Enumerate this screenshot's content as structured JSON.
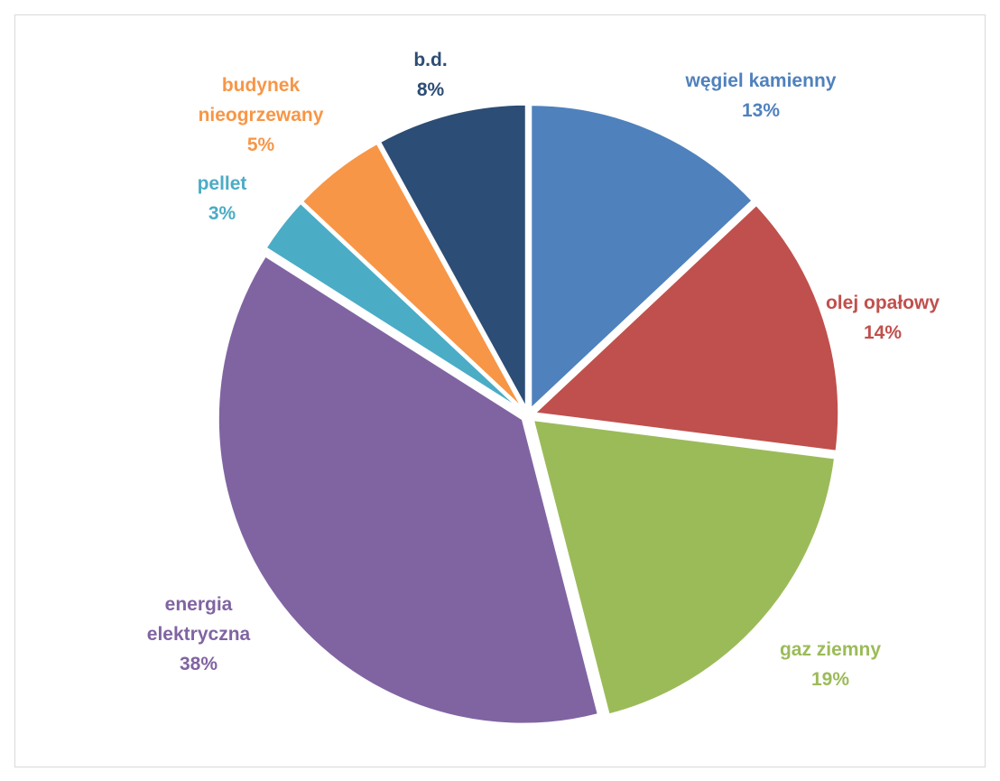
{
  "chart_data": {
    "type": "pie",
    "title": "",
    "slices": [
      {
        "name": "węgiel kamienny",
        "value": 13,
        "percent_label": "13%",
        "color": "#4f81bd",
        "label_lines": [
          "węgiel kamienny",
          "13%"
        ]
      },
      {
        "name": "olej opałowy",
        "value": 14,
        "percent_label": "14%",
        "color": "#c0504d",
        "label_lines": [
          "olej opałowy",
          "14%"
        ]
      },
      {
        "name": "gaz ziemny",
        "value": 19,
        "percent_label": "19%",
        "color": "#9bbb59",
        "label_lines": [
          "gaz ziemny",
          "19%"
        ]
      },
      {
        "name": "energia elektryczna",
        "value": 38,
        "percent_label": "38%",
        "color": "#8064a2",
        "label_lines": [
          "energia",
          "elektryczna",
          "38%"
        ]
      },
      {
        "name": "pellet",
        "value": 3,
        "percent_label": "3%",
        "color": "#4bacc6",
        "label_lines": [
          "pellet",
          "3%"
        ]
      },
      {
        "name": "budynek nieogrzewany",
        "value": 5,
        "percent_label": "5%",
        "color": "#f79646",
        "label_lines": [
          "budynek",
          "nieogrzewany",
          "5%"
        ]
      },
      {
        "name": "b.d.",
        "value": 8,
        "percent_label": "8%",
        "color": "#2c4d75",
        "label_lines": [
          "b.d.",
          "8%"
        ]
      }
    ],
    "start_angle_deg": 0,
    "direction": "clockwise",
    "legend": "none"
  }
}
